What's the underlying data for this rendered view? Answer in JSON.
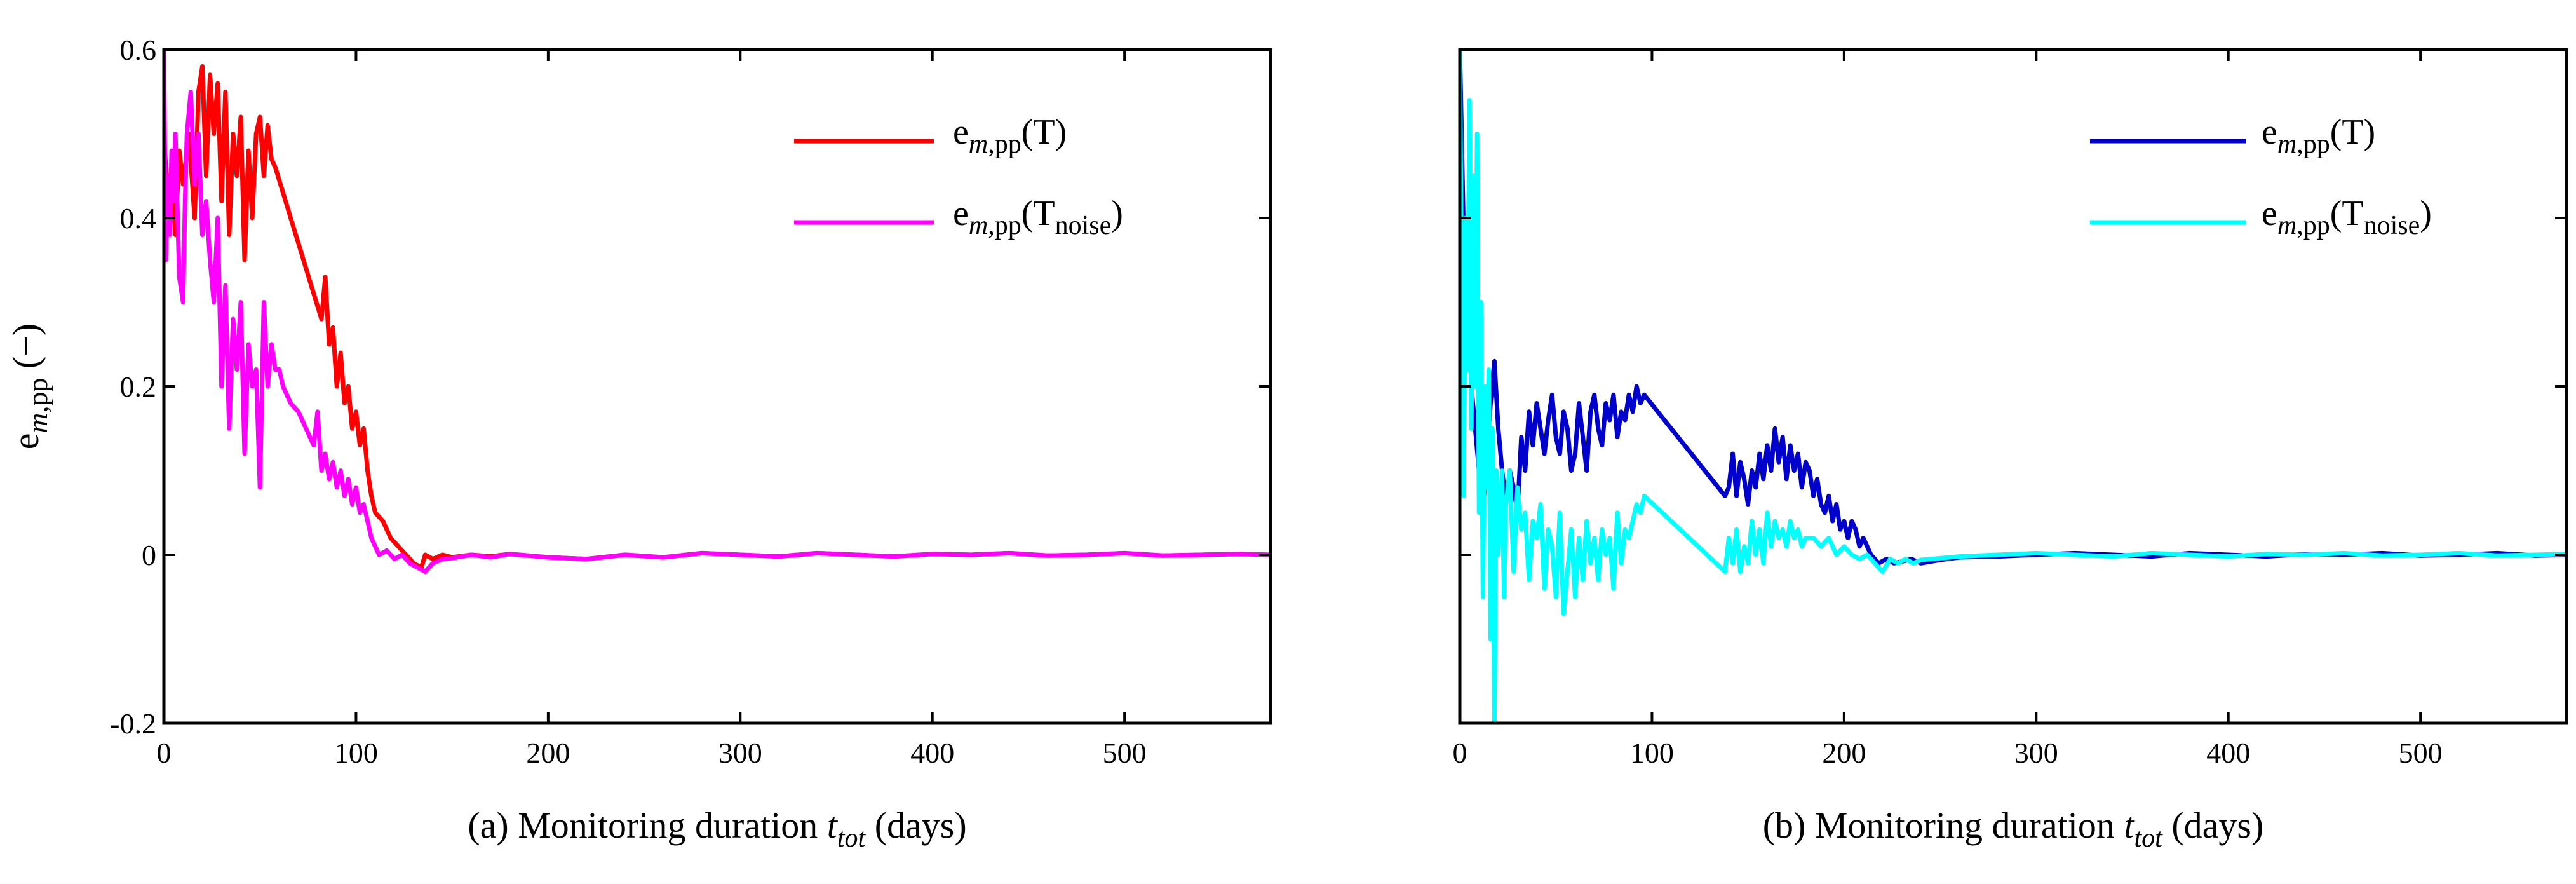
{
  "chart_data": [
    {
      "type": "line",
      "panel": "a",
      "title": "",
      "xlabel_prefix": "(a) Monitoring duration ",
      "xlabel_var": "t",
      "xlabel_sub": "tot",
      "xlabel_suffix": " (days)",
      "ylabel_base": "e",
      "ylabel_sub_m": "m",
      "ylabel_sub_pp": ",pp",
      "ylabel_unit": "(−)",
      "xlim": [
        0,
        576
      ],
      "ylim": [
        -0.2,
        0.6
      ],
      "xticks": [
        "0",
        "100",
        "200",
        "300",
        "400",
        "500"
      ],
      "yticks": [
        "-0.2",
        "0",
        "0.2",
        "0.4",
        "0.6"
      ],
      "legend_position": "top-right",
      "series": [
        {
          "name": "e_m,pp(T)",
          "legend_base": "e",
          "legend_sub_m": "m",
          "legend_sub_pp": ",pp",
          "legend_arg": "(T)",
          "color": "#ff0000",
          "x": [
            0,
            2,
            4,
            6,
            8,
            10,
            13,
            16,
            18,
            20,
            22,
            24,
            26,
            28,
            30,
            32,
            34,
            36,
            38,
            40,
            42,
            44,
            46,
            48,
            50,
            52,
            54,
            56,
            58,
            82,
            84,
            86,
            88,
            90,
            92,
            94,
            96,
            98,
            100,
            102,
            104,
            106,
            108,
            110,
            114,
            118,
            122,
            126,
            130,
            134,
            136,
            140,
            145,
            150,
            160,
            170,
            180,
            200,
            220,
            240,
            260,
            280,
            300,
            320,
            340,
            360,
            380,
            400,
            420,
            440,
            460,
            480,
            500,
            520,
            540,
            560,
            576
          ],
          "y": [
            0.5,
            0.42,
            0.45,
            0.38,
            0.48,
            0.44,
            0.5,
            0.4,
            0.55,
            0.58,
            0.45,
            0.57,
            0.5,
            0.56,
            0.42,
            0.55,
            0.38,
            0.5,
            0.45,
            0.52,
            0.35,
            0.48,
            0.4,
            0.5,
            0.52,
            0.45,
            0.51,
            0.47,
            0.46,
            0.28,
            0.33,
            0.25,
            0.27,
            0.2,
            0.24,
            0.18,
            0.2,
            0.15,
            0.17,
            0.13,
            0.15,
            0.1,
            0.07,
            0.05,
            0.04,
            0.02,
            0.01,
            0.0,
            -0.01,
            -0.015,
            0.0,
            -0.005,
            0.0,
            -0.003,
            0.0,
            -0.002,
            0.001,
            -0.003,
            -0.005,
            0.0,
            -0.003,
            0.002,
            0.0,
            -0.002,
            0.002,
            0.0,
            -0.002,
            0.001,
            0.0,
            0.002,
            -0.001,
            0.0,
            0.002,
            -0.001,
            0.0,
            0.001,
            0.0
          ]
        },
        {
          "name": "e_m,pp(T_noise)",
          "legend_base": "e",
          "legend_sub_m": "m",
          "legend_sub_pp": ",pp",
          "legend_arg_open": "(T",
          "legend_arg_sub": "noise",
          "legend_arg_close": ")",
          "color": "#ff00ff",
          "x": [
            0,
            1,
            2,
            3,
            4,
            5,
            6,
            8,
            10,
            11,
            12,
            14,
            16,
            18,
            20,
            22,
            24,
            26,
            28,
            30,
            32,
            34,
            36,
            38,
            40,
            42,
            44,
            46,
            48,
            50,
            52,
            54,
            56,
            58,
            60,
            62,
            66,
            70,
            74,
            78,
            80,
            82,
            84,
            86,
            88,
            90,
            92,
            94,
            96,
            98,
            100,
            102,
            104,
            106,
            108,
            110,
            112,
            116,
            120,
            124,
            128,
            132,
            136,
            140,
            145,
            150,
            160,
            170,
            180,
            200,
            220,
            240,
            260,
            280,
            300,
            320,
            340,
            360,
            380,
            400,
            420,
            440,
            460,
            480,
            500,
            520,
            540,
            560,
            576
          ],
          "y": [
            0.6,
            0.35,
            0.45,
            0.38,
            0.48,
            0.42,
            0.5,
            0.33,
            0.3,
            0.42,
            0.5,
            0.55,
            0.44,
            0.5,
            0.38,
            0.42,
            0.35,
            0.3,
            0.4,
            0.2,
            0.32,
            0.15,
            0.28,
            0.22,
            0.3,
            0.12,
            0.25,
            0.2,
            0.22,
            0.08,
            0.3,
            0.2,
            0.25,
            0.22,
            0.22,
            0.2,
            0.18,
            0.17,
            0.15,
            0.13,
            0.17,
            0.1,
            0.12,
            0.09,
            0.11,
            0.08,
            0.1,
            0.07,
            0.09,
            0.06,
            0.08,
            0.05,
            0.06,
            0.04,
            0.02,
            0.01,
            0.0,
            0.005,
            -0.005,
            0.0,
            -0.01,
            -0.015,
            -0.02,
            -0.01,
            -0.005,
            -0.004,
            0.0,
            -0.003,
            0.001,
            -0.003,
            -0.005,
            0.0,
            -0.003,
            0.002,
            0.0,
            -0.002,
            0.002,
            0.0,
            -0.002,
            0.001,
            0.0,
            0.002,
            -0.001,
            0.0,
            0.002,
            -0.001,
            0.0,
            0.001,
            0.0
          ]
        }
      ]
    },
    {
      "type": "line",
      "panel": "b",
      "title": "",
      "xlabel_prefix": "(b) Monitoring duration ",
      "xlabel_var": "t",
      "xlabel_sub": "tot",
      "xlabel_suffix": " (days)",
      "xlim": [
        0,
        576
      ],
      "ylim": [
        -0.2,
        0.6
      ],
      "xticks": [
        "0",
        "100",
        "200",
        "300",
        "400",
        "500"
      ],
      "legend_position": "top-right",
      "series": [
        {
          "name": "e_m,pp(T)",
          "legend_base": "e",
          "legend_sub_m": "m",
          "legend_sub_pp": ",pp",
          "legend_arg": "(T)",
          "color": "#0000cc",
          "x": [
            0,
            2,
            4,
            6,
            8,
            10,
            12,
            14,
            16,
            18,
            20,
            22,
            24,
            26,
            28,
            30,
            32,
            34,
            36,
            38,
            40,
            42,
            44,
            46,
            48,
            50,
            52,
            54,
            56,
            58,
            60,
            62,
            64,
            66,
            68,
            70,
            72,
            74,
            76,
            78,
            80,
            82,
            84,
            86,
            88,
            90,
            92,
            94,
            96,
            138,
            140,
            142,
            144,
            146,
            148,
            150,
            152,
            154,
            156,
            158,
            160,
            162,
            164,
            166,
            168,
            170,
            172,
            174,
            176,
            178,
            180,
            182,
            184,
            186,
            188,
            190,
            192,
            194,
            196,
            198,
            200,
            202,
            204,
            206,
            208,
            210,
            214,
            218,
            222,
            226,
            230,
            235,
            240,
            250,
            260,
            280,
            300,
            320,
            340,
            360,
            380,
            400,
            420,
            440,
            460,
            480,
            500,
            520,
            540,
            560,
            576
          ],
          "y": [
            0.6,
            0.38,
            0.35,
            0.2,
            0.15,
            0.1,
            0.05,
            0.12,
            0.18,
            0.23,
            0.15,
            0.1,
            0.06,
            0.1,
            0.08,
            0.05,
            0.14,
            0.1,
            0.17,
            0.13,
            0.18,
            0.15,
            0.12,
            0.16,
            0.19,
            0.14,
            0.12,
            0.17,
            0.15,
            0.1,
            0.12,
            0.18,
            0.14,
            0.1,
            0.17,
            0.19,
            0.15,
            0.13,
            0.18,
            0.16,
            0.19,
            0.14,
            0.17,
            0.16,
            0.19,
            0.17,
            0.2,
            0.18,
            0.19,
            0.07,
            0.08,
            0.12,
            0.07,
            0.11,
            0.09,
            0.06,
            0.1,
            0.08,
            0.12,
            0.09,
            0.13,
            0.1,
            0.15,
            0.11,
            0.14,
            0.09,
            0.13,
            0.1,
            0.12,
            0.08,
            0.11,
            0.1,
            0.07,
            0.09,
            0.06,
            0.05,
            0.07,
            0.04,
            0.06,
            0.03,
            0.04,
            0.02,
            0.04,
            0.03,
            0.01,
            0.02,
            0.0,
            -0.01,
            -0.005,
            -0.01,
            -0.008,
            -0.005,
            -0.01,
            -0.006,
            -0.003,
            -0.002,
            0.0,
            0.002,
            0.0,
            -0.002,
            0.002,
            0.0,
            -0.002,
            0.001,
            0.0,
            0.002,
            -0.001,
            0.0,
            0.002,
            -0.001,
            0.0
          ]
        },
        {
          "name": "e_m,pp(T_noise)",
          "legend_base": "e",
          "legend_sub_m": "m",
          "legend_sub_pp": ",pp",
          "legend_arg_open": "(T",
          "legend_arg_sub": "noise",
          "legend_arg_close": ")",
          "color": "#00ffff",
          "x": [
            0,
            1,
            2,
            3,
            4,
            5,
            6,
            7,
            8,
            9,
            10,
            11,
            12,
            13,
            14,
            15,
            16,
            17,
            18,
            19,
            20,
            21,
            22,
            23,
            24,
            26,
            28,
            30,
            32,
            34,
            36,
            38,
            40,
            42,
            44,
            46,
            48,
            50,
            52,
            54,
            56,
            58,
            60,
            62,
            64,
            66,
            68,
            70,
            72,
            74,
            76,
            78,
            80,
            82,
            84,
            86,
            88,
            90,
            92,
            94,
            96,
            138,
            140,
            142,
            144,
            146,
            148,
            150,
            152,
            154,
            156,
            158,
            160,
            162,
            164,
            166,
            168,
            170,
            172,
            174,
            176,
            178,
            180,
            184,
            188,
            192,
            196,
            200,
            204,
            208,
            212,
            216,
            220,
            224,
            228,
            232,
            236,
            240,
            250,
            260,
            280,
            300,
            320,
            340,
            360,
            380,
            400,
            420,
            440,
            460,
            480,
            500,
            520,
            540,
            560,
            576
          ],
          "y": [
            0.6,
            0.3,
            0.07,
            0.4,
            0.22,
            0.54,
            0.15,
            0.45,
            0.2,
            0.5,
            0.05,
            0.3,
            -0.05,
            0.2,
            0.08,
            0.22,
            -0.1,
            0.15,
            -0.2,
            0.1,
            0.0,
            0.05,
            0.1,
            -0.05,
            0.06,
            0.1,
            -0.02,
            0.08,
            0.03,
            0.05,
            -0.03,
            0.04,
            0.02,
            0.06,
            -0.04,
            0.03,
            0.01,
            -0.05,
            0.05,
            -0.07,
            -0.02,
            0.03,
            -0.05,
            0.02,
            -0.03,
            0.04,
            -0.01,
            0.02,
            -0.03,
            0.03,
            0.0,
            0.02,
            -0.04,
            0.05,
            -0.01,
            0.03,
            0.02,
            0.04,
            0.06,
            0.05,
            0.07,
            -0.02,
            0.02,
            -0.01,
            0.03,
            -0.02,
            0.01,
            -0.01,
            0.04,
            0.0,
            0.03,
            -0.01,
            0.05,
            0.01,
            0.04,
            0.02,
            0.03,
            0.01,
            0.04,
            0.02,
            0.03,
            0.01,
            0.02,
            0.02,
            0.01,
            0.02,
            0.0,
            0.01,
            0.0,
            -0.005,
            0.0,
            -0.01,
            -0.02,
            -0.005,
            -0.01,
            -0.005,
            -0.01,
            -0.006,
            -0.004,
            -0.002,
            0.0,
            0.002,
            0.0,
            -0.002,
            0.002,
            0.0,
            -0.002,
            0.001,
            0.0,
            0.002,
            -0.001,
            0.0,
            0.002,
            -0.001,
            0.0,
            0.001
          ]
        }
      ]
    }
  ]
}
